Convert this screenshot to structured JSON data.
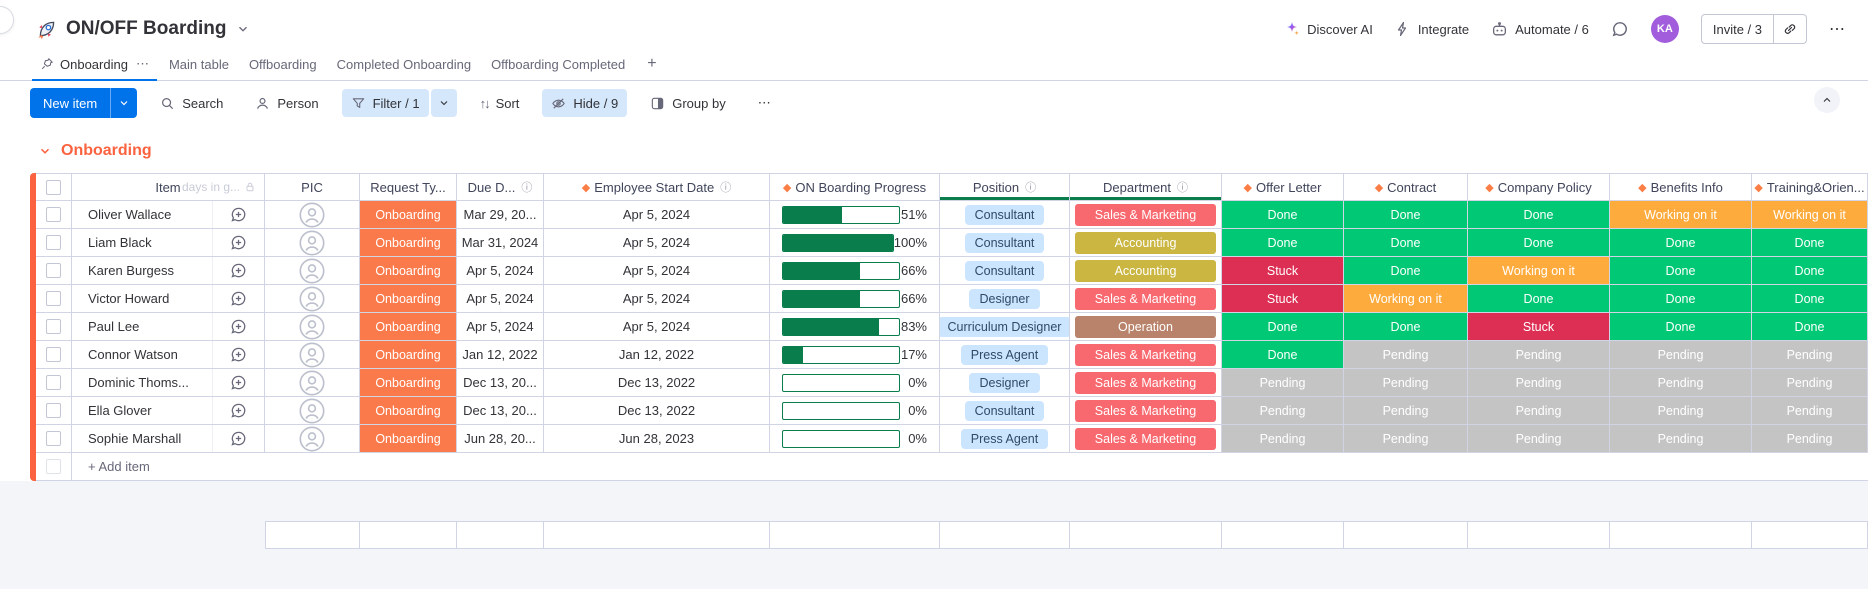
{
  "board": {
    "title": "ON/OFF Boarding"
  },
  "top": {
    "discover_ai": "Discover AI",
    "integrate": "Integrate",
    "automate": "Automate / 6",
    "invite": "Invite / 3",
    "avatar_initials": "KA"
  },
  "icons": {
    "more": "⋯",
    "sort": "↑↓",
    "info": "ⓘ",
    "diamond": "◆",
    "plus": "+"
  },
  "tabs": [
    {
      "label": "Onboarding",
      "active": true,
      "pinned": true,
      "has_menu": true
    },
    {
      "label": "Main table"
    },
    {
      "label": "Offboarding"
    },
    {
      "label": "Completed Onboarding"
    },
    {
      "label": "Offboarding Completed"
    }
  ],
  "toolbar": {
    "new_item": "New item",
    "search": "Search",
    "person": "Person",
    "filter": "Filter / 1",
    "sort": "Sort",
    "hide": "Hide / 9",
    "group_by": "Group by"
  },
  "group": {
    "title": "Onboarding"
  },
  "table": {
    "columns": [
      {
        "label": "Item",
        "muted": "days in g..."
      },
      {
        "label": "PIC"
      },
      {
        "label": "Request Ty..."
      },
      {
        "label": "Due D...",
        "info": true
      },
      {
        "label": "Employee Start Date",
        "diamond": true,
        "info": true
      },
      {
        "label": "ON Boarding Progress",
        "diamond": true
      },
      {
        "label": "Position",
        "info": true,
        "underline": true
      },
      {
        "label": "Department",
        "info": true,
        "underline": true
      },
      {
        "label": "Offer Letter",
        "diamond": true
      },
      {
        "label": "Contract",
        "diamond": true
      },
      {
        "label": "Company Policy",
        "diamond": true
      },
      {
        "label": "Benefits Info",
        "diamond": true
      },
      {
        "label": "Training&Orien...",
        "diamond": true
      }
    ],
    "rows": [
      {
        "name": "Oliver Wallace",
        "request": "Onboarding",
        "due": "Mar 29, 20...",
        "start": "Apr 5, 2024",
        "progress": 51,
        "position": "Consultant",
        "department": "Sales & Marketing",
        "statuses": [
          "Done",
          "Done",
          "Done",
          "Working on it",
          "Working on it"
        ]
      },
      {
        "name": "Liam Black",
        "request": "Onboarding",
        "due": "Mar 31, 2024",
        "start": "Apr 5, 2024",
        "progress": 100,
        "position": "Consultant",
        "department": "Accounting",
        "statuses": [
          "Done",
          "Done",
          "Done",
          "Done",
          "Done"
        ]
      },
      {
        "name": "Karen Burgess",
        "request": "Onboarding",
        "due": "Apr 5, 2024",
        "start": "Apr 5, 2024",
        "progress": 66,
        "position": "Consultant",
        "department": "Accounting",
        "statuses": [
          "Stuck",
          "Done",
          "Working on it",
          "Done",
          "Done"
        ]
      },
      {
        "name": "Victor Howard",
        "request": "Onboarding",
        "due": "Apr 5, 2024",
        "start": "Apr 5, 2024",
        "progress": 66,
        "position": "Designer",
        "department": "Sales & Marketing",
        "statuses": [
          "Stuck",
          "Working on it",
          "Done",
          "Done",
          "Done"
        ]
      },
      {
        "name": "Paul Lee",
        "request": "Onboarding",
        "due": "Apr 5, 2024",
        "start": "Apr 5, 2024",
        "progress": 83,
        "position": "Curriculum Designer",
        "department": "Operation",
        "statuses": [
          "Done",
          "Done",
          "Stuck",
          "Done",
          "Done"
        ]
      },
      {
        "name": "Connor Watson",
        "request": "Onboarding",
        "due": "Jan 12, 2022",
        "start": "Jan 12, 2022",
        "progress": 17,
        "position": "Press Agent",
        "department": "Sales & Marketing",
        "statuses": [
          "Done",
          "Pending",
          "Pending",
          "Pending",
          "Pending"
        ]
      },
      {
        "name": "Dominic Thoms...",
        "request": "Onboarding",
        "due": "Dec 13, 20...",
        "start": "Dec 13, 2022",
        "progress": 0,
        "position": "Designer",
        "department": "Sales & Marketing",
        "statuses": [
          "Pending",
          "Pending",
          "Pending",
          "Pending",
          "Pending"
        ]
      },
      {
        "name": "Ella Glover",
        "request": "Onboarding",
        "due": "Dec 13, 20...",
        "start": "Dec 13, 2022",
        "progress": 0,
        "position": "Consultant",
        "department": "Sales & Marketing",
        "statuses": [
          "Pending",
          "Pending",
          "Pending",
          "Pending",
          "Pending"
        ]
      },
      {
        "name": "Sophie Marshall",
        "request": "Onboarding",
        "due": "Jun 28, 20...",
        "start": "Jun 28, 2023",
        "progress": 0,
        "position": "Press Agent",
        "department": "Sales & Marketing",
        "statuses": [
          "Pending",
          "Pending",
          "Pending",
          "Pending",
          "Pending"
        ]
      }
    ],
    "add_item": "+ Add item"
  },
  "colors": {
    "accent": "#0073ea",
    "group": "#fb6340",
    "request_chip": "#fb7a4b",
    "progress": "#0a7d4c",
    "position_chip_bg": "#cce5ff",
    "position_chip_text": "#2e4a66",
    "toolbar_selected": "#d5e7fb",
    "status": {
      "Done": "#00c875",
      "Working on it": "#fdab3d",
      "Stuck": "#dd2e53",
      "Pending": "#c4c4c4"
    },
    "departments": {
      "Sales & Marketing": "#f8696f",
      "Accounting": "#cab641",
      "Operation": "#b8836a"
    }
  }
}
